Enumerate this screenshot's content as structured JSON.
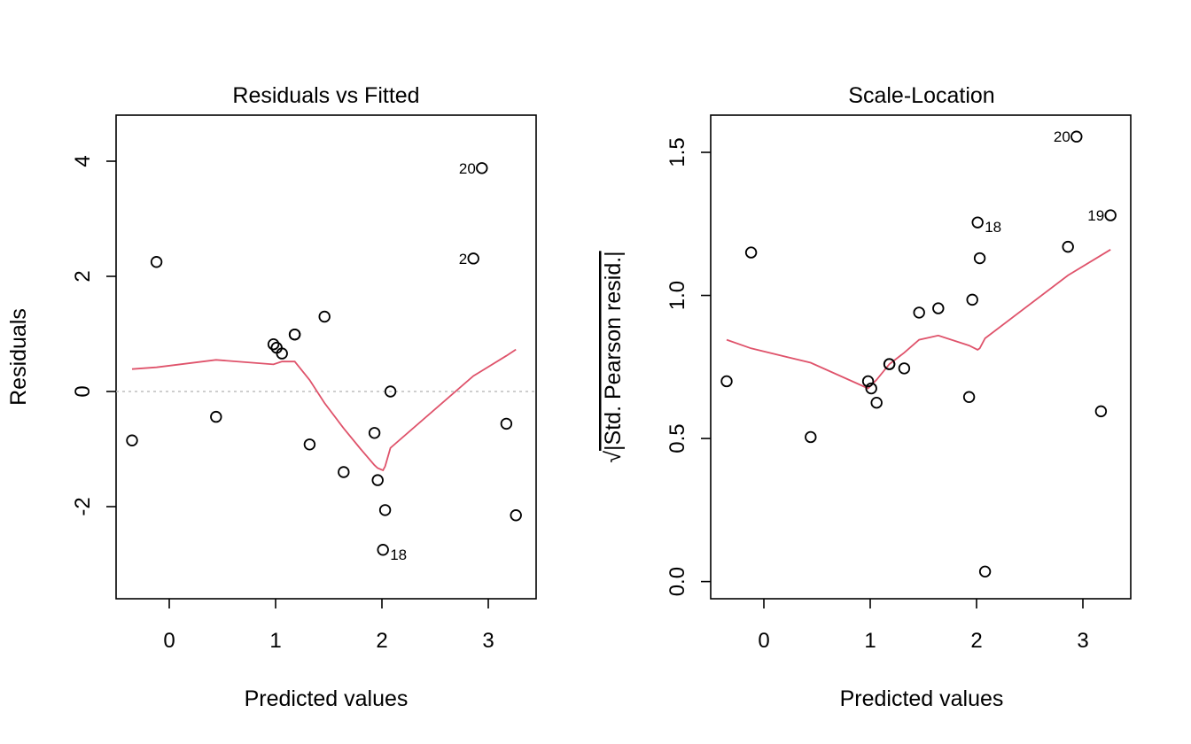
{
  "colors": {
    "smooth": "#df536b",
    "reference": "#bebebe",
    "points": "#000000"
  },
  "chart_data": [
    {
      "type": "scatter",
      "title": "Residuals vs Fitted",
      "xlabel": "Predicted values",
      "ylabel": "Residuals",
      "xlim": [
        -0.5,
        3.45
      ],
      "ylim": [
        -3.6,
        4.8
      ],
      "xticks": [
        0,
        1,
        2,
        3
      ],
      "xtick_labels": [
        "0",
        "1",
        "2",
        "3"
      ],
      "yticks": [
        -2,
        0,
        2,
        4
      ],
      "ytick_labels": [
        "-2",
        "0",
        "2",
        "4"
      ],
      "reference_line_y": 0,
      "points": [
        {
          "x": -0.35,
          "y": -0.85
        },
        {
          "x": -0.12,
          "y": 2.25
        },
        {
          "x": 0.44,
          "y": -0.44
        },
        {
          "x": 0.98,
          "y": 0.82
        },
        {
          "x": 1.01,
          "y": 0.76
        },
        {
          "x": 1.06,
          "y": 0.66
        },
        {
          "x": 1.18,
          "y": 0.99
        },
        {
          "x": 1.18,
          "y": 0.99
        },
        {
          "x": 1.32,
          "y": -0.92
        },
        {
          "x": 1.46,
          "y": 1.3
        },
        {
          "x": 1.64,
          "y": -1.4
        },
        {
          "x": 1.93,
          "y": -0.72
        },
        {
          "x": 1.96,
          "y": -1.54
        },
        {
          "x": 2.01,
          "y": -2.75,
          "label": "18",
          "label_side": "right"
        },
        {
          "x": 2.03,
          "y": -2.06
        },
        {
          "x": 2.08,
          "y": 0.0
        },
        {
          "x": 2.86,
          "y": 2.31,
          "label": "2",
          "label_side": "left"
        },
        {
          "x": 2.94,
          "y": 3.88,
          "label": "20",
          "label_side": "left"
        },
        {
          "x": 3.17,
          "y": -0.56
        },
        {
          "x": 3.26,
          "y": -2.15
        }
      ],
      "smooth": [
        {
          "x": -0.35,
          "y": 0.39
        },
        {
          "x": -0.12,
          "y": 0.42
        },
        {
          "x": 0.44,
          "y": 0.55
        },
        {
          "x": 0.98,
          "y": 0.47
        },
        {
          "x": 1.06,
          "y": 0.52
        },
        {
          "x": 1.18,
          "y": 0.52
        },
        {
          "x": 1.32,
          "y": 0.2
        },
        {
          "x": 1.46,
          "y": -0.2
        },
        {
          "x": 1.64,
          "y": -0.64
        },
        {
          "x": 1.8,
          "y": -1.0
        },
        {
          "x": 1.93,
          "y": -1.28
        },
        {
          "x": 1.96,
          "y": -1.33
        },
        {
          "x": 2.01,
          "y": -1.37
        },
        {
          "x": 2.03,
          "y": -1.3
        },
        {
          "x": 2.08,
          "y": -0.98
        },
        {
          "x": 2.86,
          "y": 0.27
        },
        {
          "x": 2.94,
          "y": 0.36
        },
        {
          "x": 3.17,
          "y": 0.62
        },
        {
          "x": 3.26,
          "y": 0.73
        }
      ]
    },
    {
      "type": "scatter",
      "title": "Scale-Location",
      "xlabel": "Predicted values",
      "ylabel_radical": "√",
      "ylabel": "|Std. Pearson resid.|",
      "xlim": [
        -0.5,
        3.45
      ],
      "ylim": [
        -0.06,
        1.63
      ],
      "xticks": [
        0,
        1,
        2,
        3
      ],
      "xtick_labels": [
        "0",
        "1",
        "2",
        "3"
      ],
      "yticks": [
        0.0,
        0.5,
        1.0,
        1.5
      ],
      "ytick_labels": [
        "0.0",
        "0.5",
        "1.0",
        "1.5"
      ],
      "points": [
        {
          "x": -0.35,
          "y": 0.7
        },
        {
          "x": -0.12,
          "y": 1.15
        },
        {
          "x": 0.44,
          "y": 0.505
        },
        {
          "x": 0.98,
          "y": 0.7
        },
        {
          "x": 1.01,
          "y": 0.675
        },
        {
          "x": 1.06,
          "y": 0.625
        },
        {
          "x": 1.18,
          "y": 0.76
        },
        {
          "x": 1.18,
          "y": 0.76
        },
        {
          "x": 1.32,
          "y": 0.745
        },
        {
          "x": 1.46,
          "y": 0.94
        },
        {
          "x": 1.64,
          "y": 0.955
        },
        {
          "x": 1.93,
          "y": 0.645
        },
        {
          "x": 1.96,
          "y": 0.985
        },
        {
          "x": 2.01,
          "y": 1.255,
          "label": "18",
          "label_side": "right"
        },
        {
          "x": 2.03,
          "y": 1.13
        },
        {
          "x": 2.08,
          "y": 0.035
        },
        {
          "x": 2.86,
          "y": 1.17
        },
        {
          "x": 2.94,
          "y": 1.555,
          "label": "20",
          "label_side": "left"
        },
        {
          "x": 3.17,
          "y": 0.595
        },
        {
          "x": 3.26,
          "y": 1.28,
          "label": "19",
          "label_side": "left"
        }
      ],
      "smooth": [
        {
          "x": -0.35,
          "y": 0.845
        },
        {
          "x": -0.12,
          "y": 0.815
        },
        {
          "x": 0.44,
          "y": 0.765
        },
        {
          "x": 0.98,
          "y": 0.675
        },
        {
          "x": 1.06,
          "y": 0.705
        },
        {
          "x": 1.18,
          "y": 0.76
        },
        {
          "x": 1.32,
          "y": 0.8
        },
        {
          "x": 1.46,
          "y": 0.845
        },
        {
          "x": 1.64,
          "y": 0.86
        },
        {
          "x": 1.93,
          "y": 0.825
        },
        {
          "x": 2.01,
          "y": 0.81
        },
        {
          "x": 2.03,
          "y": 0.815
        },
        {
          "x": 2.08,
          "y": 0.85
        },
        {
          "x": 2.86,
          "y": 1.07
        },
        {
          "x": 3.26,
          "y": 1.16
        }
      ]
    }
  ]
}
